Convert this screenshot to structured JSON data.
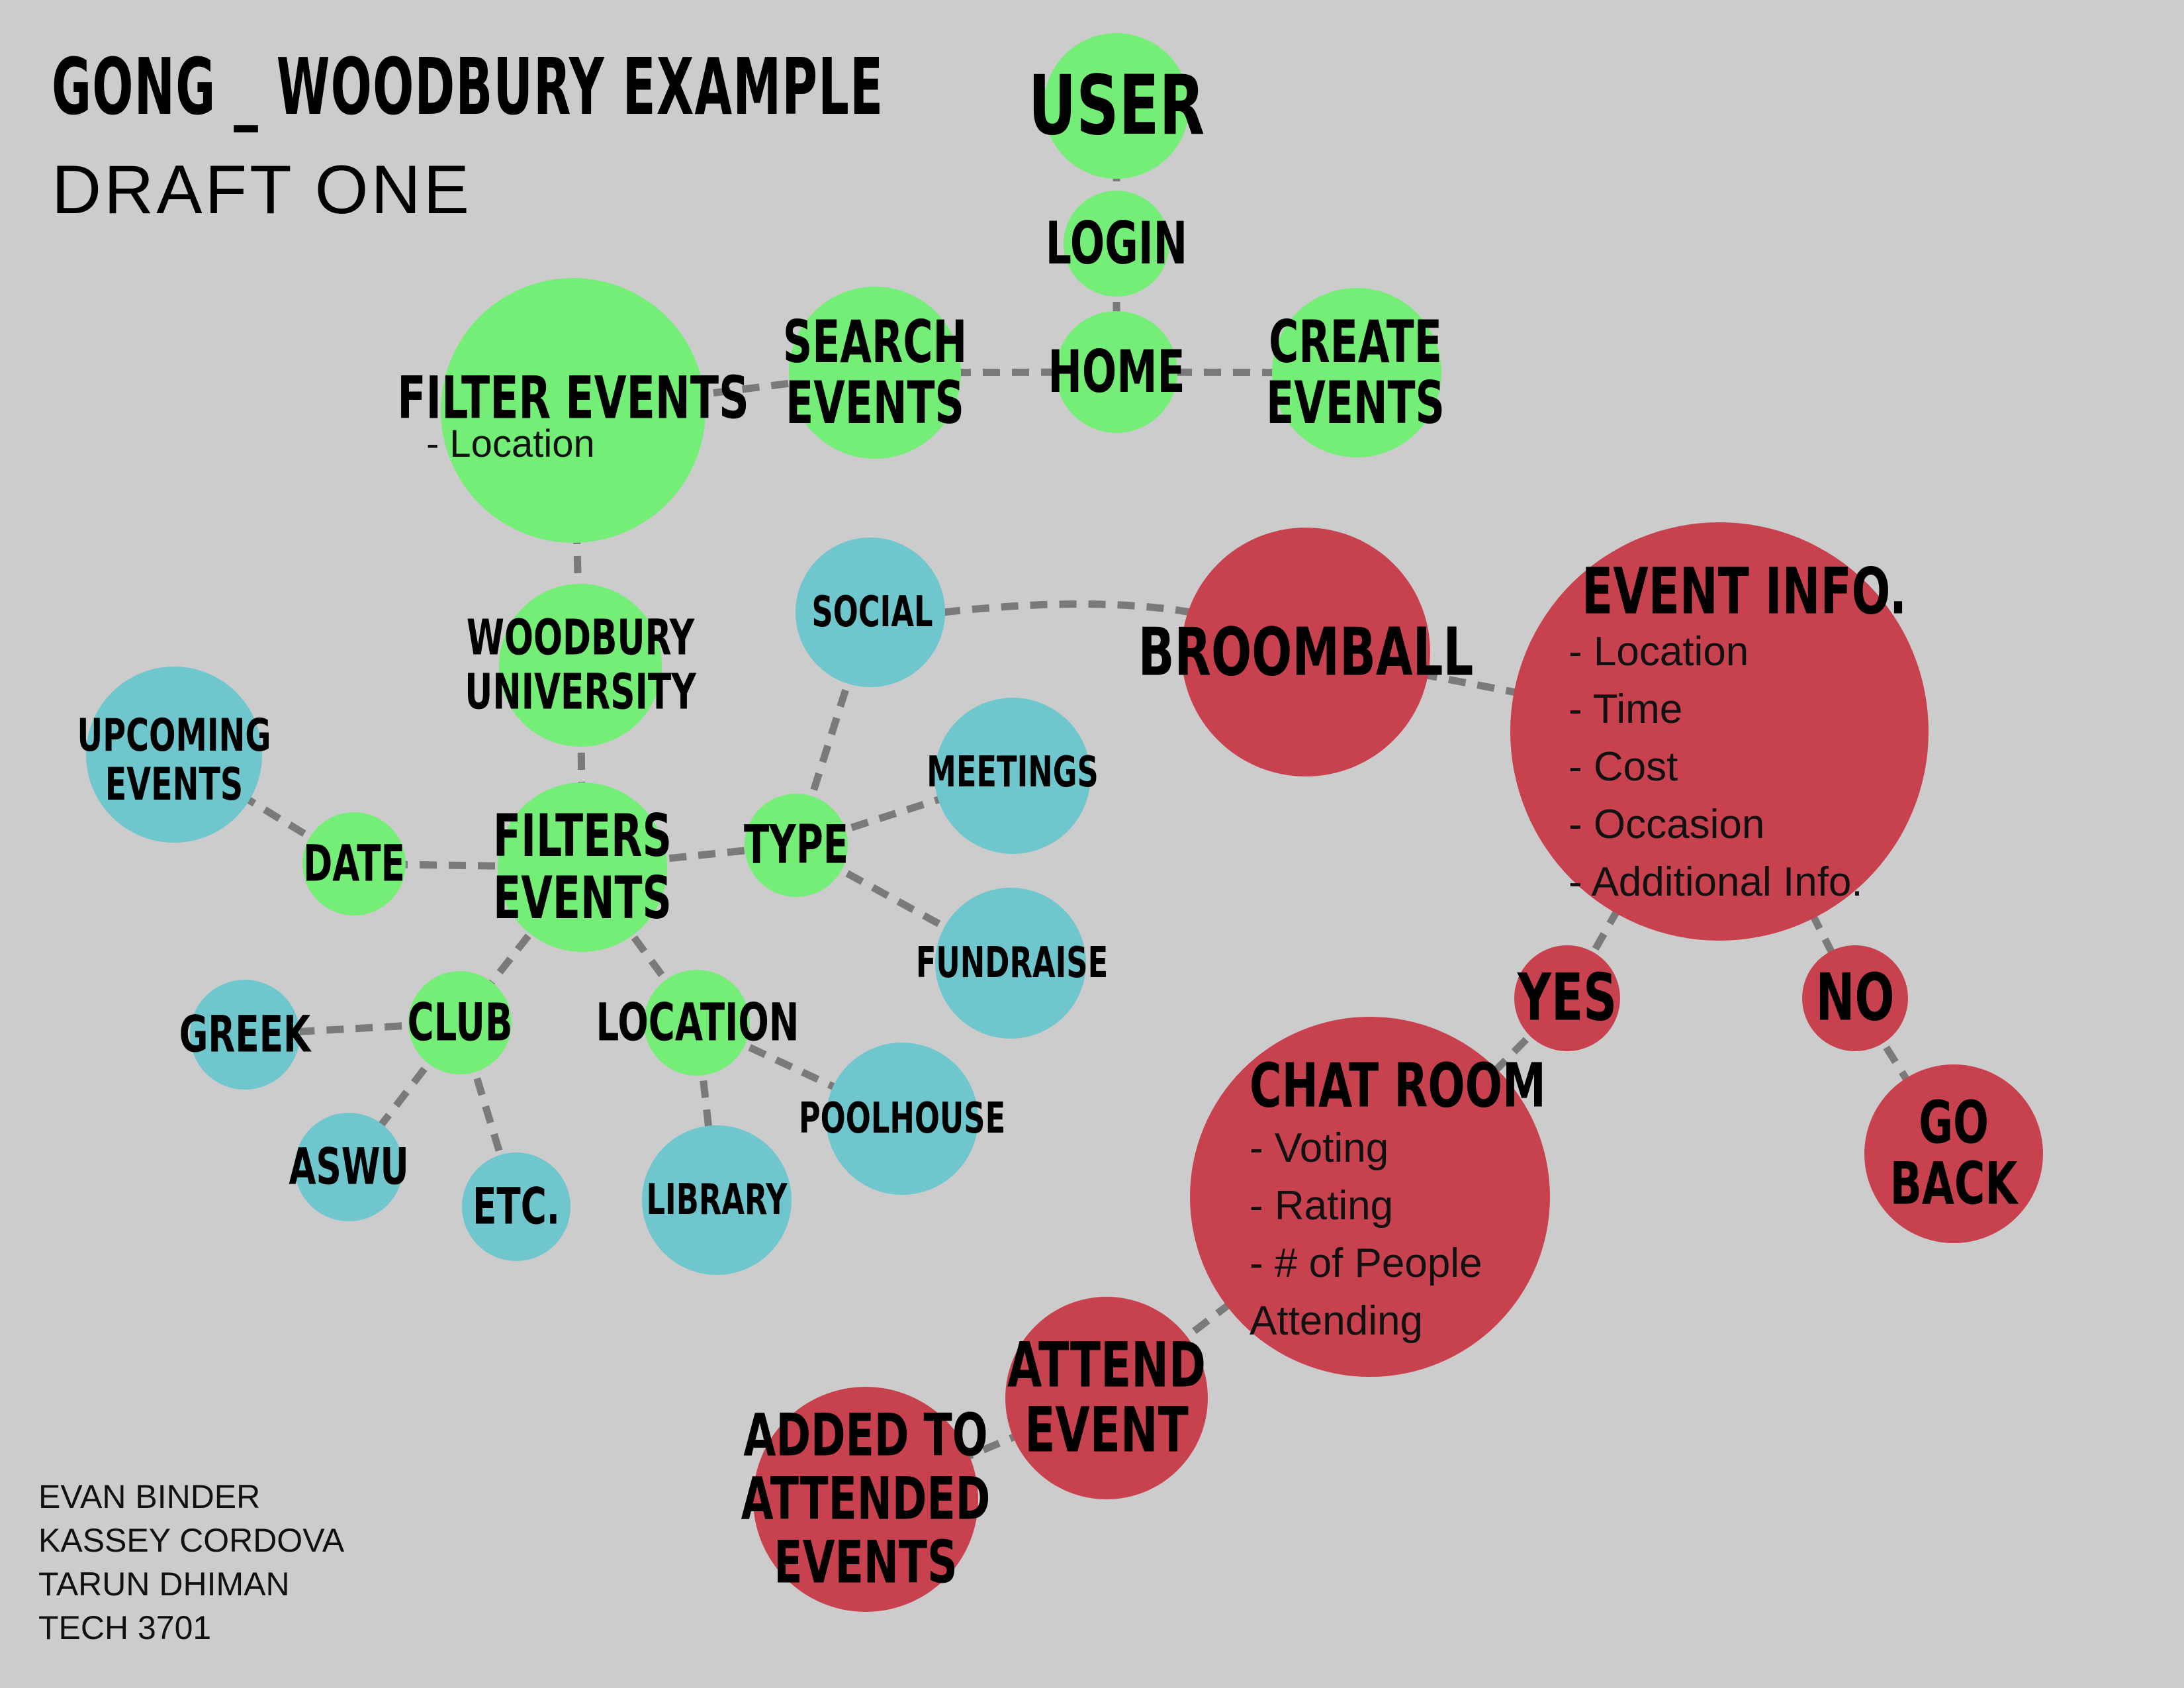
{
  "header": {
    "title": "GONG _ WOODBURY EXAMPLE",
    "subtitle": "DRAFT  ONE"
  },
  "credits": [
    "EVAN BINDER",
    "KASSEY CORDOVA",
    "TARUN DHIMAN",
    "TECH 3701"
  ],
  "colors": {
    "green": "#74ee76",
    "teal": "#6fc6cd",
    "red": "#c8414f",
    "edge": "#7a7a7a",
    "background": "#cccccc"
  },
  "nodes": {
    "user": {
      "lines": [
        "USER"
      ]
    },
    "login": {
      "lines": [
        "LOGIN"
      ]
    },
    "home": {
      "lines": [
        "HOME"
      ]
    },
    "search_events": {
      "lines": [
        "SEARCH",
        "EVENTS"
      ]
    },
    "create_events": {
      "lines": [
        "CREATE",
        "EVENTS"
      ]
    },
    "filter_events": {
      "lines": [
        "FILTER EVENTS"
      ],
      "details": [
        "- Location"
      ]
    },
    "woodbury_university": {
      "lines": [
        "WOODBURY",
        "UNIVERSITY"
      ]
    },
    "filters_events": {
      "lines": [
        "FILTERS",
        "EVENTS"
      ]
    },
    "date": {
      "lines": [
        "DATE"
      ]
    },
    "type": {
      "lines": [
        "TYPE"
      ]
    },
    "club": {
      "lines": [
        "CLUB"
      ]
    },
    "location": {
      "lines": [
        "LOCATION"
      ]
    },
    "upcoming_events": {
      "lines": [
        "UPCOMING",
        "EVENTS"
      ]
    },
    "social": {
      "lines": [
        "SOCIAL"
      ]
    },
    "meetings": {
      "lines": [
        "MEETINGS"
      ]
    },
    "fundraise": {
      "lines": [
        "FUNDRAISE"
      ]
    },
    "greek": {
      "lines": [
        "GREEK"
      ]
    },
    "aswu": {
      "lines": [
        "ASWU"
      ]
    },
    "etc": {
      "lines": [
        "ETC."
      ]
    },
    "library": {
      "lines": [
        "LIBRARY"
      ]
    },
    "poolhouse": {
      "lines": [
        "POOLHOUSE"
      ]
    },
    "broomball": {
      "lines": [
        "BROOMBALL"
      ]
    },
    "event_info": {
      "lines": [
        "EVENT INFO."
      ],
      "details": [
        "- Location",
        "- Time",
        "- Cost",
        "- Occasion",
        "- Additional Info."
      ]
    },
    "yes": {
      "lines": [
        "YES"
      ]
    },
    "no": {
      "lines": [
        "NO"
      ]
    },
    "go_back": {
      "lines": [
        "GO",
        "BACK"
      ]
    },
    "chat_room": {
      "lines": [
        "CHAT ROOM"
      ],
      "details": [
        "- Voting",
        "- Rating",
        "- # of People",
        "Attending"
      ]
    },
    "attend_event": {
      "lines": [
        "ATTEND",
        "EVENT"
      ]
    },
    "added_to_attended": {
      "lines": [
        "ADDED TO",
        "ATTENDED",
        "EVENTS"
      ]
    }
  }
}
